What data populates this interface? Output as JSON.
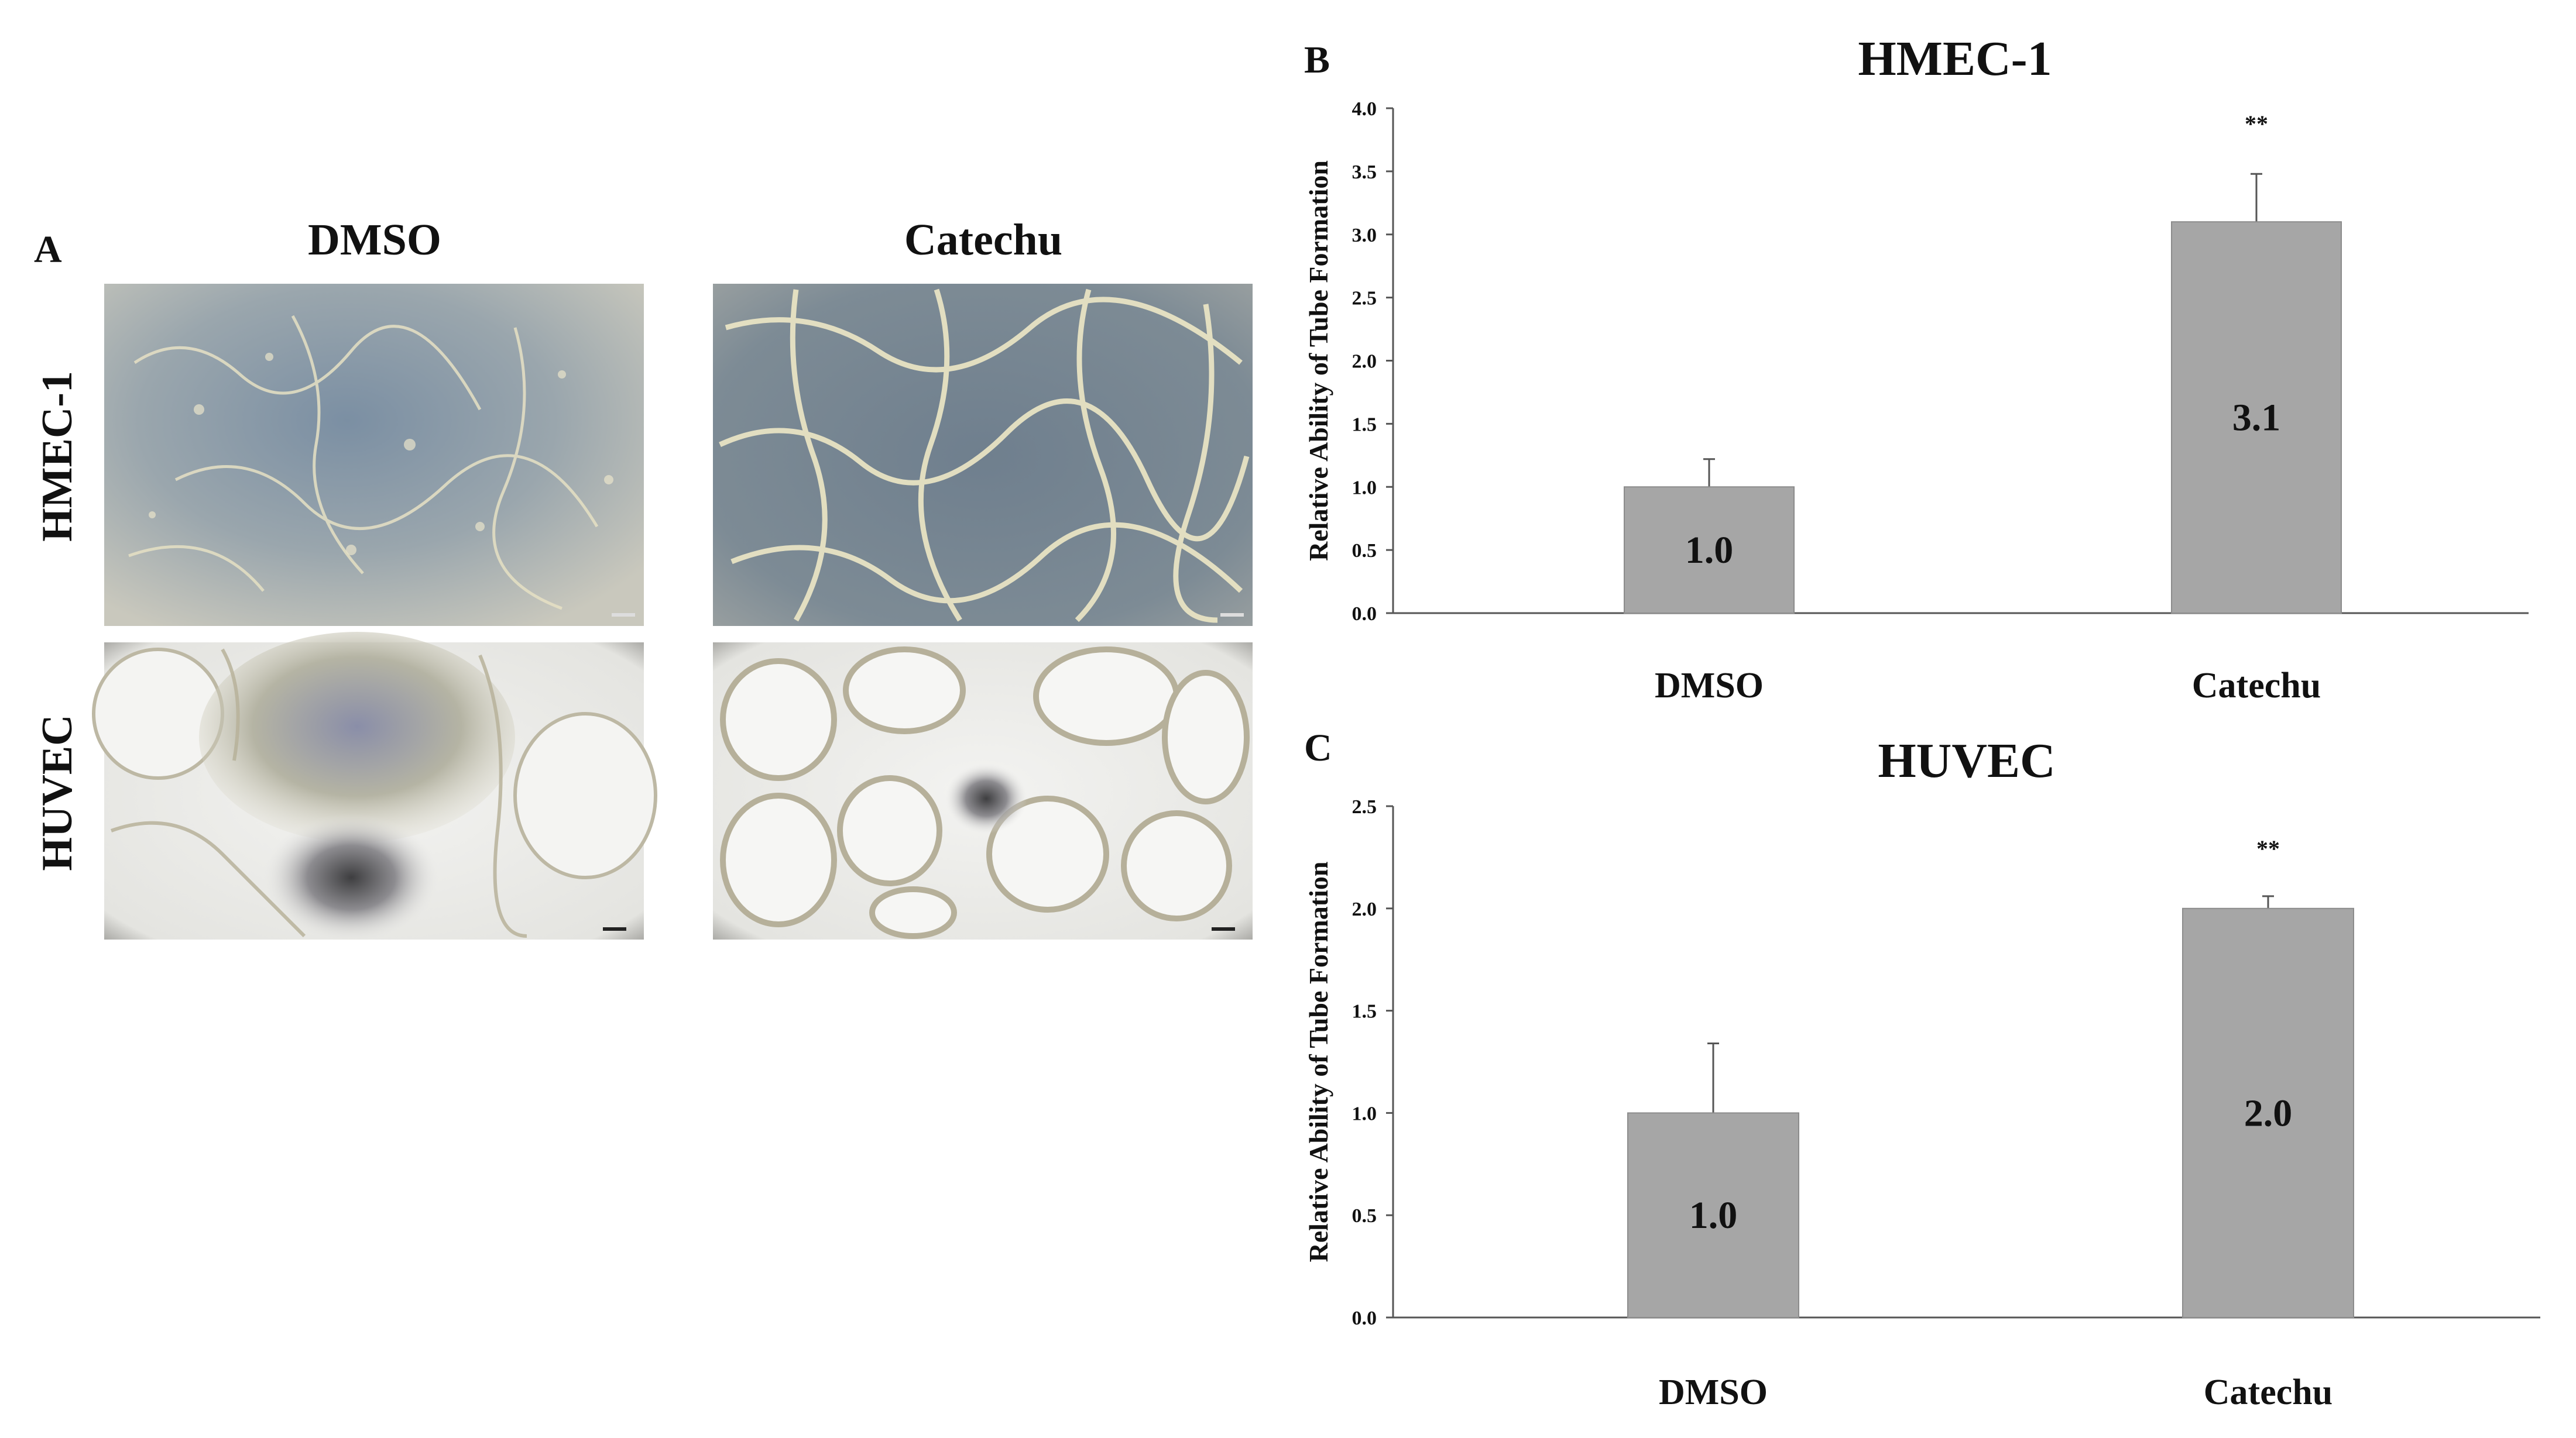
{
  "panels": {
    "a_label": "A",
    "b_label": "B",
    "c_label": "C"
  },
  "micrographs": {
    "col_headers": [
      "DMSO",
      "Catechu"
    ],
    "row_headers": [
      "HMEC-1",
      "HUVEC"
    ]
  },
  "colors": {
    "bar_fill": "#a6a6a6",
    "bar_stroke": "#8c8c8c",
    "axis": "#555555",
    "text": "#111111"
  },
  "chart_data": [
    {
      "type": "bar",
      "title": "HMEC-1",
      "ylabel": "Relative Ability of Tube Formation",
      "xlabel": "",
      "categories": [
        "DMSO",
        "Catechu"
      ],
      "values": [
        1.0,
        3.1
      ],
      "value_labels": [
        "1.0",
        "3.1"
      ],
      "error_upper": [
        1.22,
        3.48
      ],
      "significance": [
        "",
        "**"
      ],
      "ylim": [
        0,
        4.0
      ],
      "yticks": [
        "0.0",
        "0.5",
        "1.0",
        "1.5",
        "2.0",
        "2.5",
        "3.0",
        "3.5",
        "4.0"
      ],
      "grid": false,
      "legend": "none"
    },
    {
      "type": "bar",
      "title": "HUVEC",
      "ylabel": "Relative Ability of Tube Formation",
      "xlabel": "",
      "categories": [
        "DMSO",
        "Catechu"
      ],
      "values": [
        1.0,
        2.0
      ],
      "value_labels": [
        "1.0",
        "2.0"
      ],
      "error_upper": [
        1.34,
        2.06
      ],
      "significance": [
        "",
        "**"
      ],
      "ylim": [
        0,
        2.5
      ],
      "yticks": [
        "0.0",
        "0.5",
        "1.0",
        "1.5",
        "2.0",
        "2.5"
      ],
      "grid": false,
      "legend": "none"
    }
  ]
}
